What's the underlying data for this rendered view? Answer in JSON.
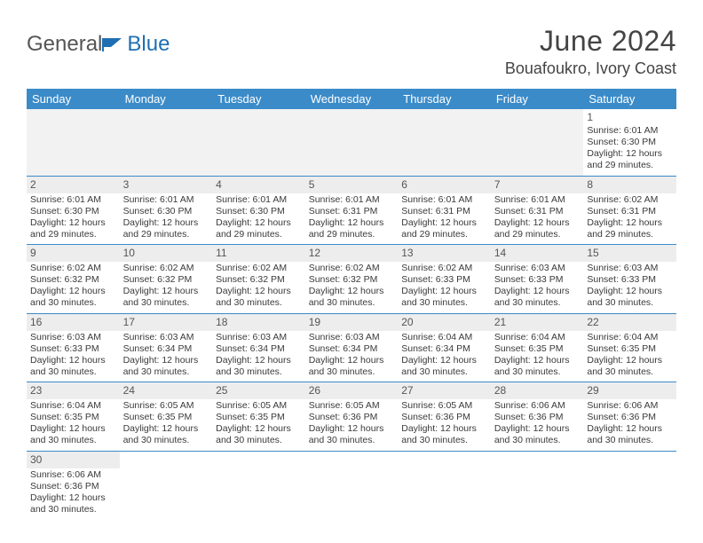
{
  "logo": {
    "text1": "General",
    "text2": "Blue"
  },
  "title": "June 2024",
  "location": "Bouafoukro, Ivory Coast",
  "colors": {
    "headerBg": "#3b8bc9",
    "headerText": "#ffffff",
    "rowBorder": "#3b8bc9",
    "shaded": "#ededed",
    "logoBlue": "#1f6fb2"
  },
  "dayHeaders": [
    "Sunday",
    "Monday",
    "Tuesday",
    "Wednesday",
    "Thursday",
    "Friday",
    "Saturday"
  ],
  "weeks": [
    {
      "blankLead": true,
      "cells": [
        null,
        null,
        null,
        null,
        null,
        null,
        {
          "n": 1,
          "sunrise": "6:01 AM",
          "sunset": "6:30 PM",
          "day1": "Daylight: 12 hours",
          "day2": "and 29 minutes."
        }
      ]
    },
    {
      "cells": [
        {
          "n": 2,
          "sunrise": "6:01 AM",
          "sunset": "6:30 PM",
          "day1": "Daylight: 12 hours",
          "day2": "and 29 minutes."
        },
        {
          "n": 3,
          "sunrise": "6:01 AM",
          "sunset": "6:30 PM",
          "day1": "Daylight: 12 hours",
          "day2": "and 29 minutes."
        },
        {
          "n": 4,
          "sunrise": "6:01 AM",
          "sunset": "6:30 PM",
          "day1": "Daylight: 12 hours",
          "day2": "and 29 minutes."
        },
        {
          "n": 5,
          "sunrise": "6:01 AM",
          "sunset": "6:31 PM",
          "day1": "Daylight: 12 hours",
          "day2": "and 29 minutes."
        },
        {
          "n": 6,
          "sunrise": "6:01 AM",
          "sunset": "6:31 PM",
          "day1": "Daylight: 12 hours",
          "day2": "and 29 minutes."
        },
        {
          "n": 7,
          "sunrise": "6:01 AM",
          "sunset": "6:31 PM",
          "day1": "Daylight: 12 hours",
          "day2": "and 29 minutes."
        },
        {
          "n": 8,
          "sunrise": "6:02 AM",
          "sunset": "6:31 PM",
          "day1": "Daylight: 12 hours",
          "day2": "and 29 minutes."
        }
      ]
    },
    {
      "cells": [
        {
          "n": 9,
          "sunrise": "6:02 AM",
          "sunset": "6:32 PM",
          "day1": "Daylight: 12 hours",
          "day2": "and 30 minutes."
        },
        {
          "n": 10,
          "sunrise": "6:02 AM",
          "sunset": "6:32 PM",
          "day1": "Daylight: 12 hours",
          "day2": "and 30 minutes."
        },
        {
          "n": 11,
          "sunrise": "6:02 AM",
          "sunset": "6:32 PM",
          "day1": "Daylight: 12 hours",
          "day2": "and 30 minutes."
        },
        {
          "n": 12,
          "sunrise": "6:02 AM",
          "sunset": "6:32 PM",
          "day1": "Daylight: 12 hours",
          "day2": "and 30 minutes."
        },
        {
          "n": 13,
          "sunrise": "6:02 AM",
          "sunset": "6:33 PM",
          "day1": "Daylight: 12 hours",
          "day2": "and 30 minutes."
        },
        {
          "n": 14,
          "sunrise": "6:03 AM",
          "sunset": "6:33 PM",
          "day1": "Daylight: 12 hours",
          "day2": "and 30 minutes."
        },
        {
          "n": 15,
          "sunrise": "6:03 AM",
          "sunset": "6:33 PM",
          "day1": "Daylight: 12 hours",
          "day2": "and 30 minutes."
        }
      ]
    },
    {
      "cells": [
        {
          "n": 16,
          "sunrise": "6:03 AM",
          "sunset": "6:33 PM",
          "day1": "Daylight: 12 hours",
          "day2": "and 30 minutes."
        },
        {
          "n": 17,
          "sunrise": "6:03 AM",
          "sunset": "6:34 PM",
          "day1": "Daylight: 12 hours",
          "day2": "and 30 minutes."
        },
        {
          "n": 18,
          "sunrise": "6:03 AM",
          "sunset": "6:34 PM",
          "day1": "Daylight: 12 hours",
          "day2": "and 30 minutes."
        },
        {
          "n": 19,
          "sunrise": "6:03 AM",
          "sunset": "6:34 PM",
          "day1": "Daylight: 12 hours",
          "day2": "and 30 minutes."
        },
        {
          "n": 20,
          "sunrise": "6:04 AM",
          "sunset": "6:34 PM",
          "day1": "Daylight: 12 hours",
          "day2": "and 30 minutes."
        },
        {
          "n": 21,
          "sunrise": "6:04 AM",
          "sunset": "6:35 PM",
          "day1": "Daylight: 12 hours",
          "day2": "and 30 minutes."
        },
        {
          "n": 22,
          "sunrise": "6:04 AM",
          "sunset": "6:35 PM",
          "day1": "Daylight: 12 hours",
          "day2": "and 30 minutes."
        }
      ]
    },
    {
      "cells": [
        {
          "n": 23,
          "sunrise": "6:04 AM",
          "sunset": "6:35 PM",
          "day1": "Daylight: 12 hours",
          "day2": "and 30 minutes."
        },
        {
          "n": 24,
          "sunrise": "6:05 AM",
          "sunset": "6:35 PM",
          "day1": "Daylight: 12 hours",
          "day2": "and 30 minutes."
        },
        {
          "n": 25,
          "sunrise": "6:05 AM",
          "sunset": "6:35 PM",
          "day1": "Daylight: 12 hours",
          "day2": "and 30 minutes."
        },
        {
          "n": 26,
          "sunrise": "6:05 AM",
          "sunset": "6:36 PM",
          "day1": "Daylight: 12 hours",
          "day2": "and 30 minutes."
        },
        {
          "n": 27,
          "sunrise": "6:05 AM",
          "sunset": "6:36 PM",
          "day1": "Daylight: 12 hours",
          "day2": "and 30 minutes."
        },
        {
          "n": 28,
          "sunrise": "6:06 AM",
          "sunset": "6:36 PM",
          "day1": "Daylight: 12 hours",
          "day2": "and 30 minutes."
        },
        {
          "n": 29,
          "sunrise": "6:06 AM",
          "sunset": "6:36 PM",
          "day1": "Daylight: 12 hours",
          "day2": "and 30 minutes."
        }
      ]
    },
    {
      "noBorder": true,
      "cells": [
        {
          "n": 30,
          "sunrise": "6:06 AM",
          "sunset": "6:36 PM",
          "day1": "Daylight: 12 hours",
          "day2": "and 30 minutes."
        },
        null,
        null,
        null,
        null,
        null,
        null
      ]
    }
  ],
  "labels": {
    "sunrisePrefix": "Sunrise: ",
    "sunsetPrefix": "Sunset: "
  }
}
